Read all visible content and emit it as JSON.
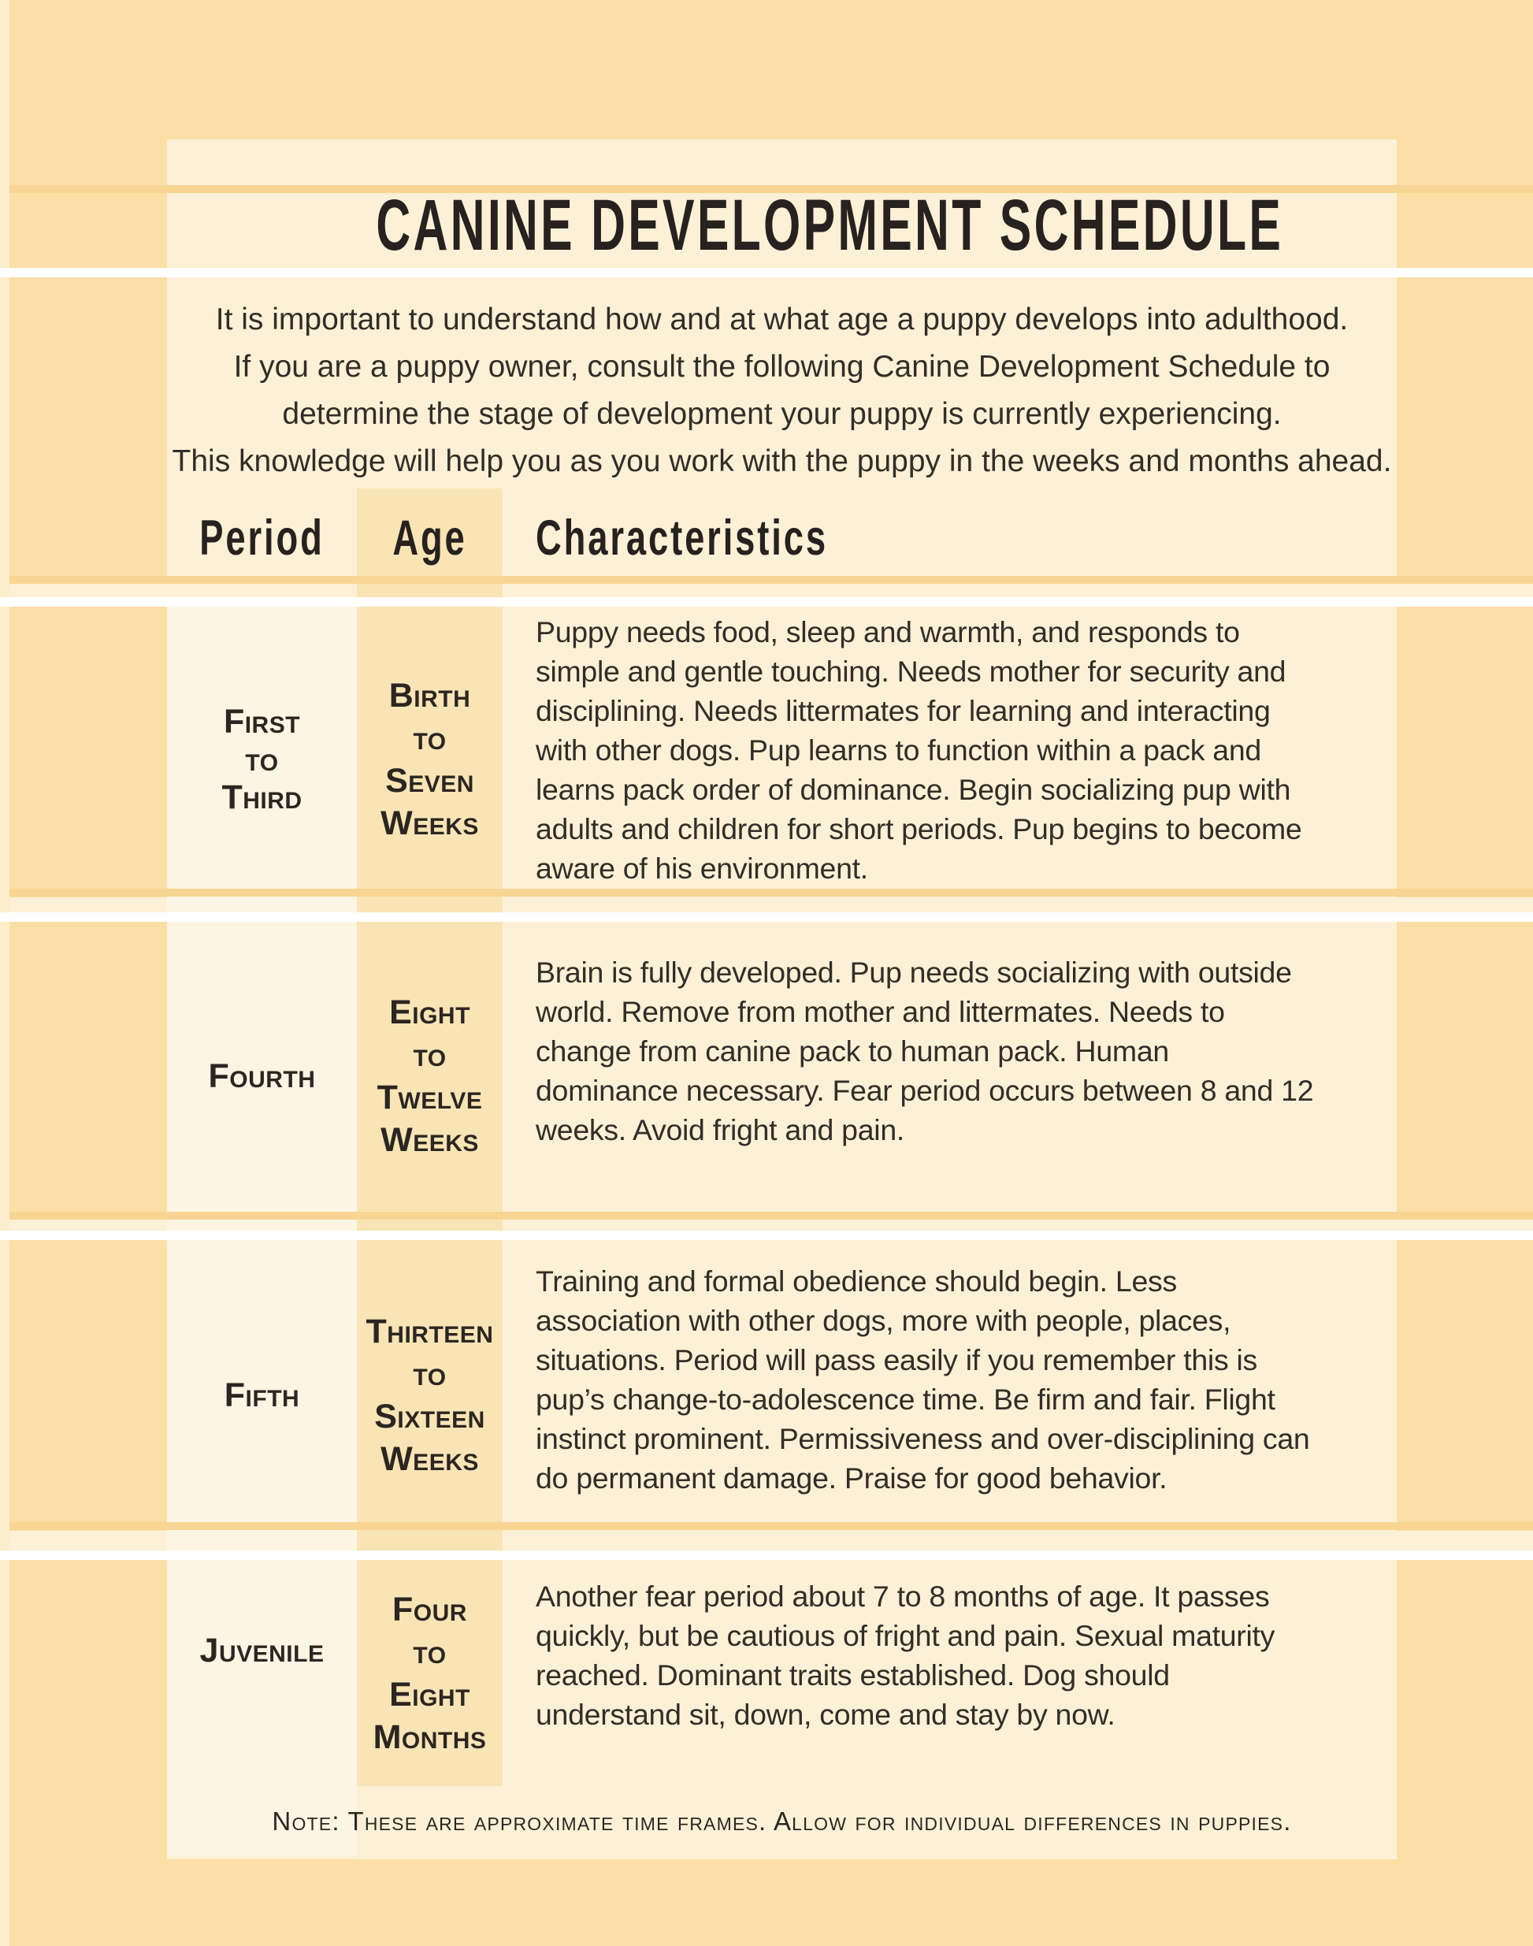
{
  "title": "CANINE DEVELOPMENT SCHEDULE",
  "intro": "It is important to understand how and at what age a puppy develops into adulthood.\nIf you are a puppy owner, consult the following Canine Development Schedule to\ndetermine the stage of development your puppy is currently experiencing.\nThis knowledge will help you as you work with the puppy in the weeks and months ahead.",
  "headers": {
    "period": "Period",
    "age": "Age",
    "characteristics": "Characteristics"
  },
  "rows": [
    {
      "period": "First\nto\nThird",
      "age": "Birth\nto\nSeven\nWeeks",
      "characteristics": "Puppy needs food, sleep and warmth, and responds to\nsimple and gentle touching. Needs mother for security and\ndisciplining. Needs littermates for learning and interacting\nwith other dogs. Pup learns to function within a pack and\nlearns pack order of dominance. Begin socializing pup with\nadults and children for short periods. Pup begins to become\naware of his environment."
    },
    {
      "period": "Fourth",
      "age": "Eight\nto\nTwelve\nWeeks",
      "characteristics": "Brain is fully developed. Pup needs socializing with outside\nworld. Remove from mother and littermates. Needs to\nchange from canine pack to human pack. Human\ndominance necessary. Fear period occurs between 8 and 12\nweeks. Avoid fright and pain."
    },
    {
      "period": "Fifth",
      "age": "Thirteen\nto\nSixteen\nWeeks",
      "characteristics": "Training and formal obedience should begin. Less\nassociation with other dogs, more with people, places,\nsituations. Period will pass easily if you remember this is\npup’s change-to-adolescence time. Be firm and fair. Flight\ninstinct prominent. Permissiveness and over-disciplining can\ndo permanent damage. Praise for good behavior."
    },
    {
      "period": "Juvenile",
      "age": "Four\nto\nEight\nMonths",
      "characteristics": "Another fear period about 7 to 8 months of age. It passes\nquickly, but be cautious of fright and pain. Sexual maturity\nreached. Dominant traits established. Dog should\nunderstand sit, down, come and stay by now."
    }
  ],
  "note": "Note: These are approximate time frames. Allow for individual differences in puppies.",
  "colors": {
    "outer_background": "#fbdfa7",
    "panel_cream": "#fcf1d6",
    "period_column_cream": "#fdf5e3",
    "age_column_tan": "#f9e4b5",
    "separator_stripe_tan": "#f8d592",
    "separator_white": "#ffffff",
    "page_edge_light": "#fdeecb",
    "text_dark": "#2f2a26"
  }
}
